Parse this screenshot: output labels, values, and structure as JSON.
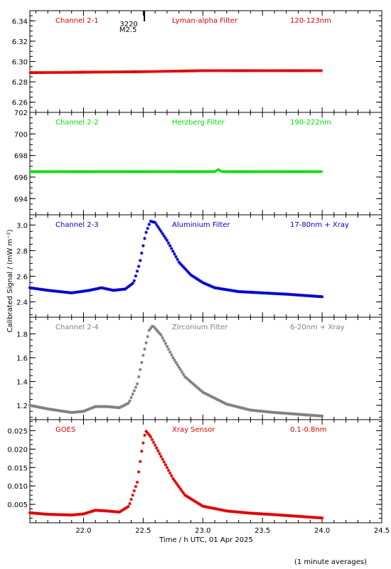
{
  "ylabel": "Calibrated Signal  / (mW m⁻²)",
  "xlabel": "Time / h UTC, 01 Apr 2025",
  "footnote": "(1 minute averages)",
  "xlim": [
    21.55,
    24.5
  ],
  "x_ticks": [
    "22.0",
    "22.5",
    "23.0",
    "23.5",
    "24.0",
    "24.5"
  ],
  "marker": {
    "x": 22.51,
    "labels": [
      "3220",
      "M2.5"
    ]
  },
  "chart_data": [
    {
      "type": "scatter",
      "name": "Channel 2-1",
      "filter": "Lyman-alpha Filter",
      "band": "120-123nm",
      "color": "#e00000",
      "marker": "plus",
      "ylim": [
        6.25,
        6.35
      ],
      "y_ticks": [
        "6.26",
        "6.28",
        "6.30",
        "6.32",
        "6.34"
      ],
      "series_type": "flat",
      "points": [
        [
          21.55,
          6.289
        ],
        [
          22.5,
          6.29
        ],
        [
          23.0,
          6.291
        ],
        [
          24.0,
          6.291
        ]
      ]
    },
    {
      "type": "scatter",
      "name": "Channel 2-2",
      "filter": "Herzberg Filter",
      "band": "190-222nm",
      "color": "#00e000",
      "marker": "plus",
      "ylim": [
        692.5,
        702.0
      ],
      "y_ticks": [
        "694",
        "696",
        "698",
        "700",
        "702"
      ],
      "series_type": "flat",
      "points": [
        [
          21.55,
          696.5
        ],
        [
          23.1,
          696.5
        ],
        [
          23.13,
          696.7
        ],
        [
          23.16,
          696.5
        ],
        [
          24.0,
          696.5
        ]
      ]
    },
    {
      "type": "scatter",
      "name": "Channel 2-3",
      "filter": "Aluminium Filter",
      "band": "17-80nm + Xray",
      "color": "#0000d0",
      "marker": "star",
      "ylim": [
        2.28,
        3.08
      ],
      "y_ticks": [
        "2.4",
        "2.6",
        "2.8",
        "3.0"
      ],
      "series_type": "flare",
      "points": [
        [
          21.55,
          2.51
        ],
        [
          21.7,
          2.49
        ],
        [
          21.9,
          2.47
        ],
        [
          22.05,
          2.49
        ],
        [
          22.15,
          2.51
        ],
        [
          22.25,
          2.49
        ],
        [
          22.35,
          2.5
        ],
        [
          22.42,
          2.55
        ],
        [
          22.47,
          2.7
        ],
        [
          22.52,
          2.93
        ],
        [
          22.56,
          3.03
        ],
        [
          22.6,
          3.02
        ],
        [
          22.7,
          2.88
        ],
        [
          22.8,
          2.71
        ],
        [
          22.9,
          2.61
        ],
        [
          23.0,
          2.55
        ],
        [
          23.1,
          2.51
        ],
        [
          23.3,
          2.48
        ],
        [
          23.5,
          2.47
        ],
        [
          23.7,
          2.46
        ],
        [
          24.0,
          2.44
        ]
      ]
    },
    {
      "type": "scatter",
      "name": "Channel 2-4",
      "filter": "Zirconium Filter",
      "band": "6-20nm + Xray",
      "color": "#808080",
      "marker": "star",
      "ylim": [
        1.08,
        1.94
      ],
      "y_ticks": [
        "1.2",
        "1.4",
        "1.6",
        "1.8"
      ],
      "series_type": "flare",
      "points": [
        [
          21.55,
          1.2
        ],
        [
          21.7,
          1.17
        ],
        [
          21.9,
          1.14
        ],
        [
          22.0,
          1.15
        ],
        [
          22.1,
          1.19
        ],
        [
          22.2,
          1.19
        ],
        [
          22.3,
          1.18
        ],
        [
          22.38,
          1.22
        ],
        [
          22.45,
          1.38
        ],
        [
          22.5,
          1.62
        ],
        [
          22.55,
          1.83
        ],
        [
          22.58,
          1.87
        ],
        [
          22.65,
          1.79
        ],
        [
          22.75,
          1.6
        ],
        [
          22.85,
          1.44
        ],
        [
          23.0,
          1.31
        ],
        [
          23.2,
          1.21
        ],
        [
          23.4,
          1.16
        ],
        [
          23.6,
          1.14
        ],
        [
          24.0,
          1.11
        ]
      ]
    },
    {
      "type": "scatter",
      "name": "GOES",
      "filter": "Xray Sensor",
      "band": "0.1-0.8nm",
      "color": "#e00000",
      "marker": "star",
      "ylim": [
        0.0,
        0.028
      ],
      "y_ticks": [
        "0.005",
        "0.010",
        "0.015",
        "0.020",
        "0.025"
      ],
      "series_type": "flare",
      "points": [
        [
          21.55,
          0.0027
        ],
        [
          21.7,
          0.0023
        ],
        [
          21.9,
          0.0021
        ],
        [
          22.0,
          0.0024
        ],
        [
          22.1,
          0.0034
        ],
        [
          22.2,
          0.0032
        ],
        [
          22.3,
          0.0029
        ],
        [
          22.38,
          0.0045
        ],
        [
          22.45,
          0.011
        ],
        [
          22.49,
          0.02
        ],
        [
          22.52,
          0.025
        ],
        [
          22.56,
          0.0235
        ],
        [
          22.65,
          0.018
        ],
        [
          22.75,
          0.012
        ],
        [
          22.85,
          0.0075
        ],
        [
          23.0,
          0.0045
        ],
        [
          23.2,
          0.0032
        ],
        [
          23.4,
          0.0026
        ],
        [
          23.6,
          0.0022
        ],
        [
          24.0,
          0.0013
        ]
      ]
    }
  ]
}
